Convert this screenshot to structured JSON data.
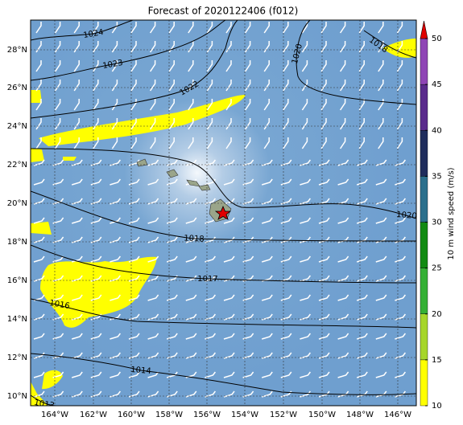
{
  "title": "Forecast of 2020122406 (f012)",
  "map": {
    "lat_labels": [
      "28°N",
      "26°N",
      "24°N",
      "22°N",
      "20°N",
      "18°N",
      "16°N",
      "14°N",
      "12°N",
      "10°N"
    ],
    "lon_labels": [
      "164°W",
      "162°W",
      "160°W",
      "158°W",
      "156°W",
      "154°W",
      "152°W",
      "150°W",
      "148°W",
      "146°W"
    ],
    "contour_labels": [
      "1024",
      "1023",
      "1022",
      "1020",
      "1018",
      "1020",
      "1018",
      "1017",
      "1016",
      "1014",
      "1013"
    ]
  },
  "colorbar": {
    "label": "10 m wind speed (m/s)",
    "lim": [
      10,
      50
    ],
    "ticks": [
      10,
      15,
      20,
      25,
      30,
      35,
      40,
      45,
      50
    ],
    "colors": [
      "#ffff00",
      "#a6d62a",
      "#35b035",
      "#128a12",
      "#2b6f8c",
      "#1f2d5c",
      "#5a2b8c",
      "#8f45b5"
    ],
    "extend_color": "#e00000"
  }
}
